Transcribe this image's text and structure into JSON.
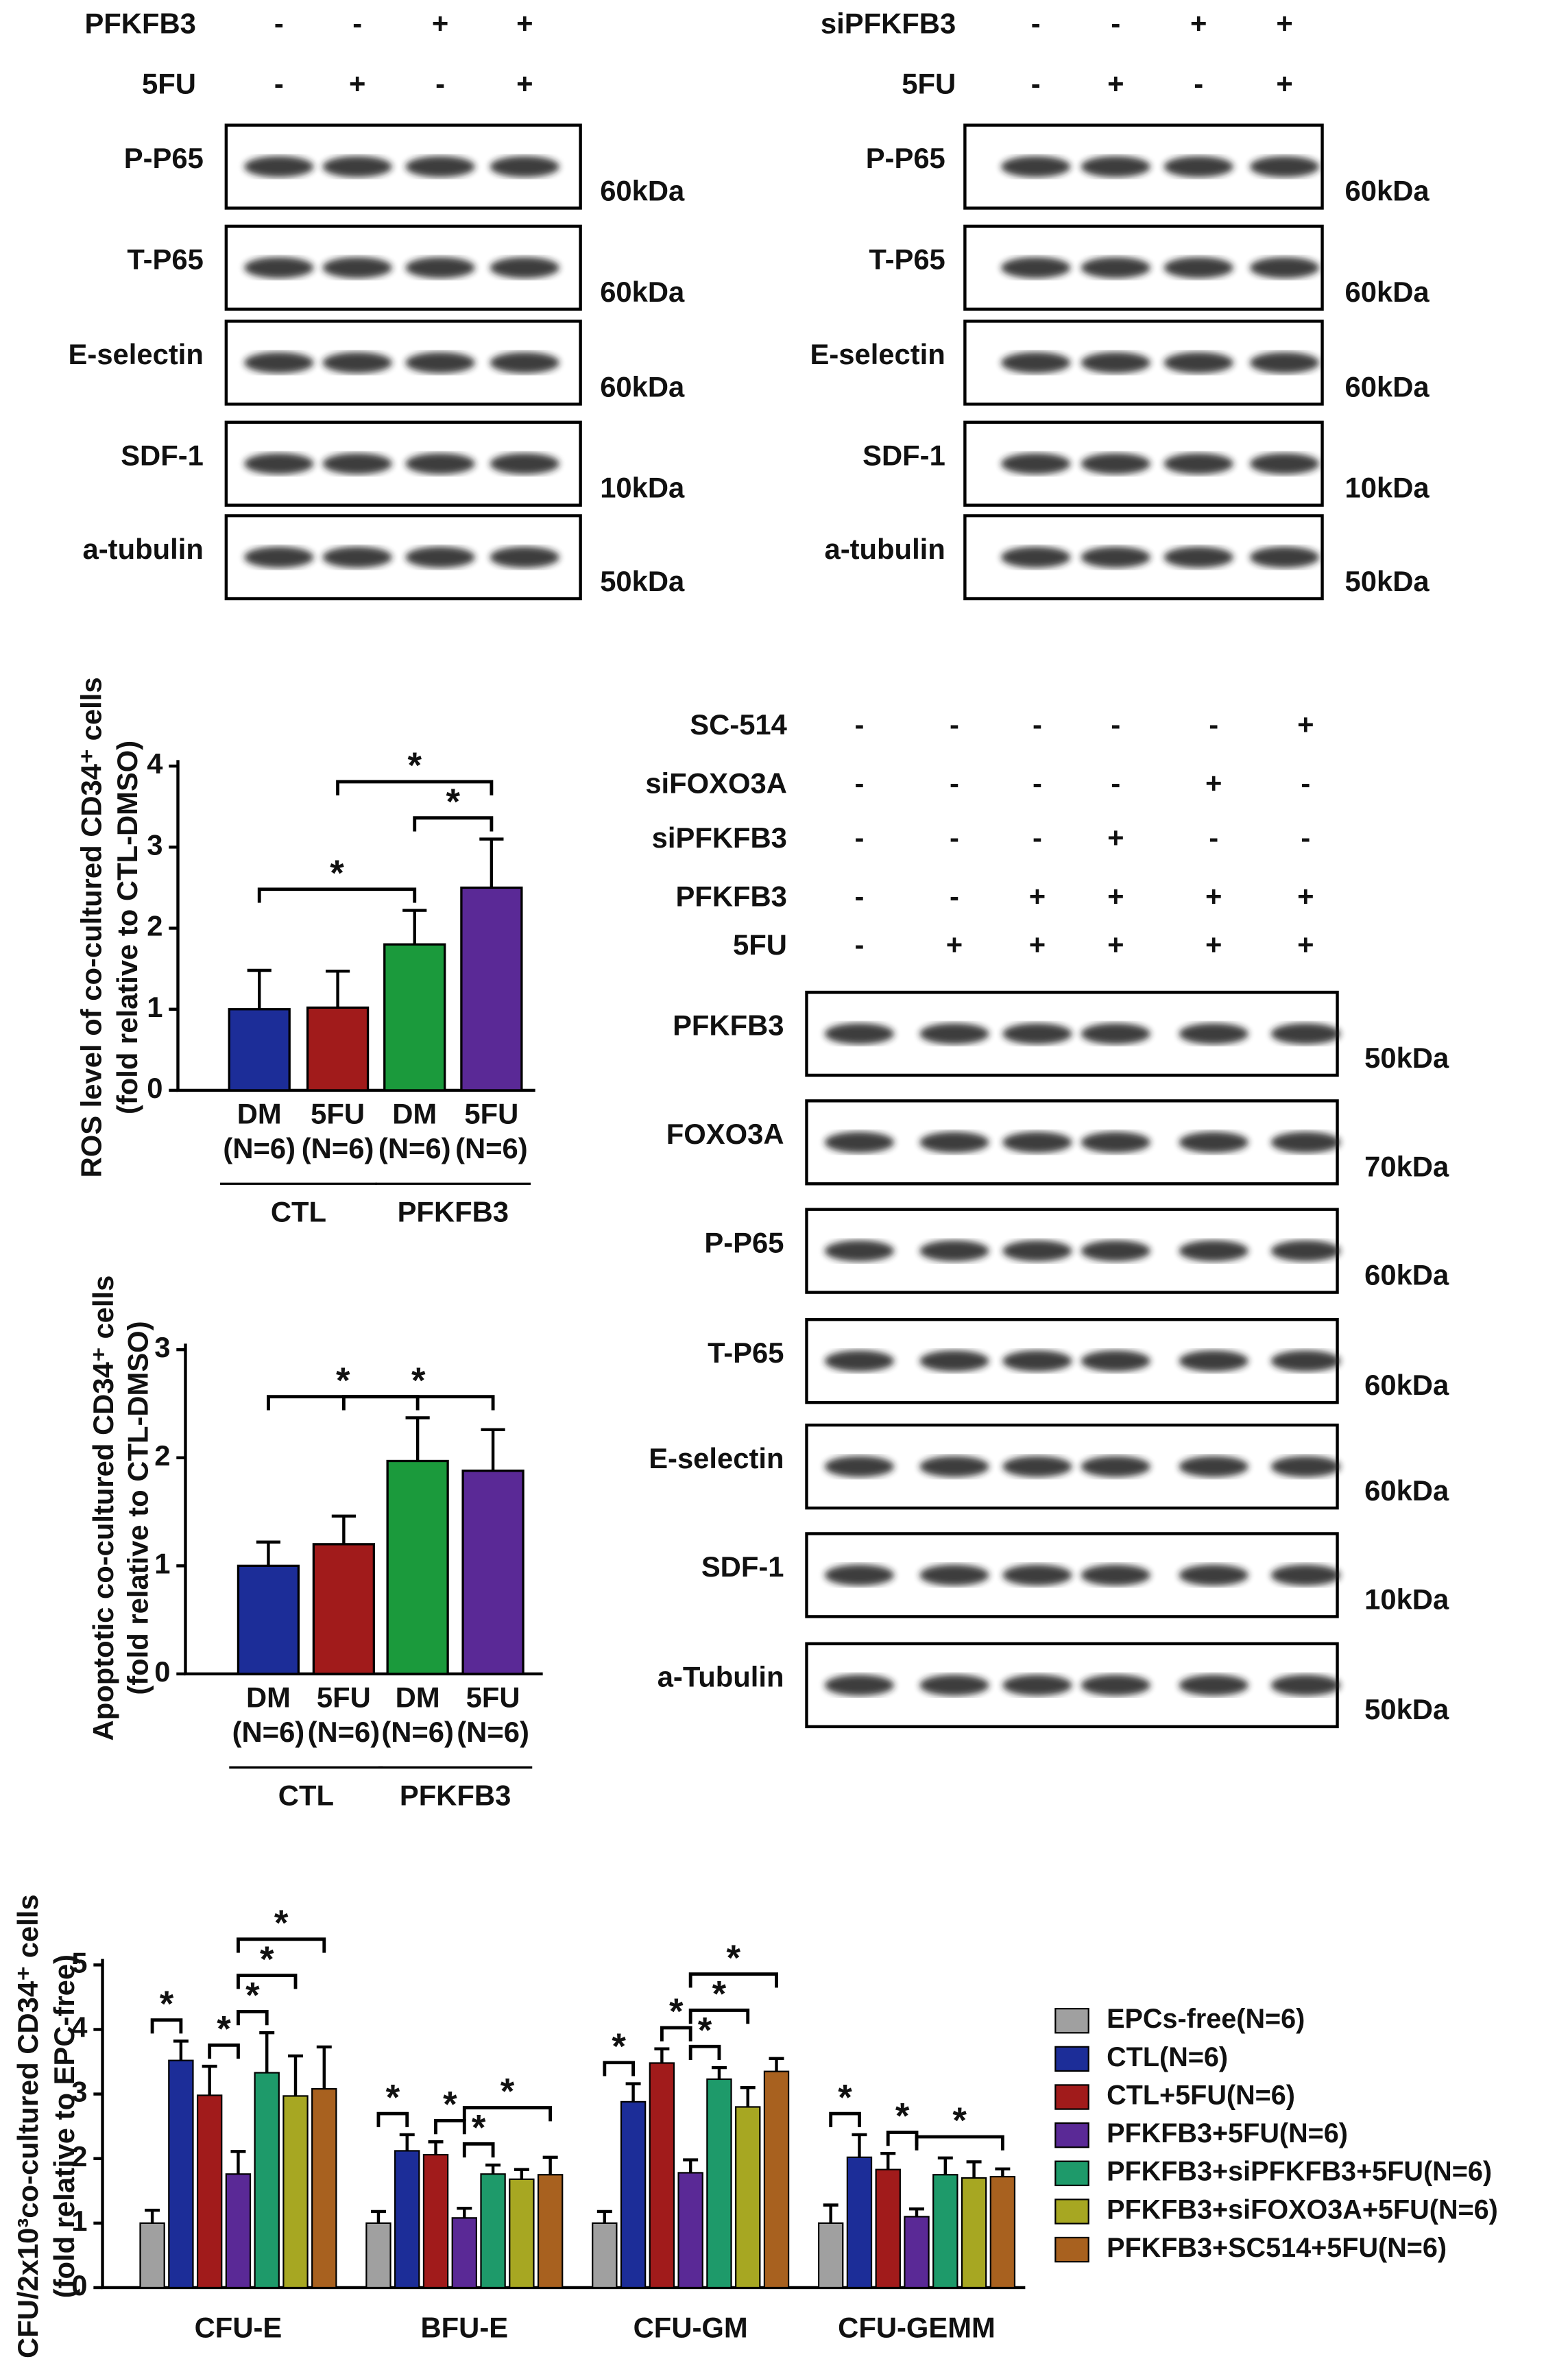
{
  "blots": [
    {
      "conditions": [
        {
          "label": "PFKFB3",
          "signs": [
            "-",
            "-",
            "+",
            "+"
          ]
        },
        {
          "label": "5FU",
          "signs": [
            "-",
            "+",
            "-",
            "+"
          ]
        }
      ],
      "rows": [
        {
          "label": "P-P65",
          "size": "60kDa"
        },
        {
          "label": "T-P65",
          "size": "60kDa"
        },
        {
          "label": "E-selectin",
          "size": "60kDa"
        },
        {
          "label": "SDF-1",
          "size": "10kDa"
        },
        {
          "label": "a-tubulin",
          "size": "50kDa"
        }
      ]
    },
    {
      "conditions": [
        {
          "label": "siPFKFB3",
          "signs": [
            "-",
            "-",
            "+",
            "+"
          ]
        },
        {
          "label": "5FU",
          "signs": [
            "-",
            "+",
            "-",
            "+"
          ]
        }
      ],
      "rows": [
        {
          "label": "P-P65",
          "size": "60kDa"
        },
        {
          "label": "T-P65",
          "size": "60kDa"
        },
        {
          "label": "E-selectin",
          "size": "60kDa"
        },
        {
          "label": "SDF-1",
          "size": "10kDa"
        },
        {
          "label": "a-tubulin",
          "size": "50kDa"
        }
      ]
    },
    {
      "conditions": [
        {
          "label": "SC-514",
          "signs": [
            "-",
            "-",
            "-",
            "-",
            "-",
            "+"
          ]
        },
        {
          "label": "siFOXO3A",
          "signs": [
            "-",
            "-",
            "-",
            "-",
            "+",
            "-"
          ]
        },
        {
          "label": "siPFKFB3",
          "signs": [
            "-",
            "-",
            "-",
            "+",
            "-",
            "-"
          ]
        },
        {
          "label": "PFKFB3",
          "signs": [
            "-",
            "-",
            "+",
            "+",
            "+",
            "+"
          ]
        },
        {
          "label": "5FU",
          "signs": [
            "-",
            "+",
            "+",
            "+",
            "+",
            "+"
          ]
        }
      ],
      "rows": [
        {
          "label": "PFKFB3",
          "size": "50kDa"
        },
        {
          "label": "FOXO3A",
          "size": "70kDa"
        },
        {
          "label": "P-P65",
          "size": "60kDa"
        },
        {
          "label": "T-P65",
          "size": "60kDa"
        },
        {
          "label": "E-selectin",
          "size": "60kDa"
        },
        {
          "label": "SDF-1",
          "size": "10kDa"
        },
        {
          "label": "a-Tubulin",
          "size": "50kDa"
        }
      ]
    }
  ],
  "chart_data": [
    {
      "type": "bar",
      "ylabel": [
        "ROS level of co-cultured CD34⁺ cells",
        "(fold relative to CTL-DMSO)"
      ],
      "categories": [
        "DM",
        "5FU",
        "DM",
        "5FU"
      ],
      "sample_sizes": [
        "(N=6)",
        "(N=6)",
        "(N=6)",
        "(N=6)"
      ],
      "groups": [
        {
          "label": "CTL",
          "members": [
            0,
            1
          ]
        },
        {
          "label": "PFKFB3",
          "members": [
            2,
            3
          ]
        }
      ],
      "values": [
        1.0,
        1.02,
        1.8,
        2.5
      ],
      "errors": [
        0.48,
        0.45,
        0.42,
        0.6
      ],
      "colors": [
        "#1c2d98",
        "#a11b1b",
        "#1b9a3c",
        "#5a2996"
      ],
      "ylim": [
        0,
        4
      ],
      "yticks": [
        0,
        1,
        2,
        3,
        4
      ],
      "significance": [
        {
          "pair": [
            2,
            3
          ],
          "label": "*"
        },
        {
          "pair": [
            0,
            2
          ],
          "label": "*"
        },
        {
          "pair": [
            1,
            3
          ],
          "label": "*"
        }
      ]
    },
    {
      "type": "bar",
      "ylabel": [
        "Apoptotic co-cultured CD34⁺ cells",
        "(fold relative to CTL-DMSO)"
      ],
      "categories": [
        "DM",
        "5FU",
        "DM",
        "5FU"
      ],
      "sample_sizes": [
        "(N=6)",
        "(N=6)",
        "(N=6)",
        "(N=6)"
      ],
      "groups": [
        {
          "label": "CTL",
          "members": [
            0,
            1
          ]
        },
        {
          "label": "PFKFB3",
          "members": [
            2,
            3
          ]
        }
      ],
      "values": [
        1.0,
        1.2,
        1.97,
        1.88
      ],
      "errors": [
        0.22,
        0.26,
        0.4,
        0.38
      ],
      "colors": [
        "#1c2d98",
        "#a11b1b",
        "#1b9a3c",
        "#5a2996"
      ],
      "ylim": [
        0,
        3
      ],
      "yticks": [
        0,
        1,
        2,
        3
      ],
      "significance": [
        {
          "pair": [
            0,
            2
          ],
          "label": "*"
        },
        {
          "pair": [
            1,
            3
          ],
          "label": "*"
        }
      ]
    },
    {
      "type": "grouped_bar",
      "ylabel": [
        "CFU/2x10³co-cultured CD34⁺ cells",
        "(fold relative to EPC-free)"
      ],
      "categories": [
        "CFU-E",
        "BFU-E",
        "CFU-GM",
        "CFU-GEMM"
      ],
      "series": [
        {
          "name": "EPCs-free(N=6)",
          "color": "#a0a0a0",
          "values": [
            1.0,
            1.0,
            1.0,
            1.0
          ],
          "errors": [
            0.2,
            0.18,
            0.18,
            0.28
          ]
        },
        {
          "name": "CTL(N=6)",
          "color": "#1c2d98",
          "values": [
            3.52,
            2.12,
            2.88,
            2.02
          ],
          "errors": [
            0.3,
            0.25,
            0.28,
            0.35
          ]
        },
        {
          "name": "CTL+5FU(N=6)",
          "color": "#a11b1b",
          "values": [
            2.98,
            2.06,
            3.48,
            1.83
          ],
          "errors": [
            0.45,
            0.2,
            0.22,
            0.25
          ]
        },
        {
          "name": "PFKFB3+5FU(N=6)",
          "color": "#5a2996",
          "values": [
            1.76,
            1.08,
            1.78,
            1.1
          ],
          "errors": [
            0.35,
            0.15,
            0.2,
            0.12
          ]
        },
        {
          "name": "PFKFB3+siPFKFB3+5FU(N=6)",
          "color": "#1e9a6a",
          "values": [
            3.33,
            1.76,
            3.23,
            1.75
          ],
          "errors": [
            0.62,
            0.14,
            0.18,
            0.26
          ]
        },
        {
          "name": "PFKFB3+siFOXO3A+5FU(N=6)",
          "color": "#a7a722",
          "values": [
            2.97,
            1.68,
            2.8,
            1.7
          ],
          "errors": [
            0.62,
            0.15,
            0.3,
            0.25
          ]
        },
        {
          "name": "PFKFB3+SC514+5FU(N=6)",
          "color": "#a8611f",
          "values": [
            3.08,
            1.75,
            3.35,
            1.72
          ],
          "errors": [
            0.65,
            0.27,
            0.2,
            0.12
          ]
        }
      ],
      "ylim": [
        0,
        5
      ],
      "yticks": [
        0,
        1,
        2,
        3,
        4,
        5
      ],
      "significance": [
        {
          "category": 0,
          "pair": [
            0,
            1
          ],
          "label": "*"
        },
        {
          "category": 0,
          "pair": [
            2,
            3
          ],
          "label": "*"
        },
        {
          "category": 0,
          "pair": [
            3,
            4
          ],
          "label": "*"
        },
        {
          "category": 0,
          "pair": [
            3,
            5
          ],
          "label": "*"
        },
        {
          "category": 0,
          "pair": [
            3,
            6
          ],
          "label": "*"
        },
        {
          "category": 1,
          "pair": [
            0,
            1
          ],
          "label": "*"
        },
        {
          "category": 1,
          "pair": [
            2,
            3
          ],
          "label": "*"
        },
        {
          "category": 1,
          "pair": [
            3,
            4
          ],
          "label": "*"
        },
        {
          "category": 1,
          "pair": [
            3,
            6
          ],
          "label": "*"
        },
        {
          "category": 2,
          "pair": [
            0,
            1
          ],
          "label": "*"
        },
        {
          "category": 2,
          "pair": [
            2,
            3
          ],
          "label": "*"
        },
        {
          "category": 2,
          "pair": [
            3,
            4
          ],
          "label": "*"
        },
        {
          "category": 2,
          "pair": [
            3,
            5
          ],
          "label": "*"
        },
        {
          "category": 2,
          "pair": [
            3,
            6
          ],
          "label": "*"
        },
        {
          "category": 3,
          "pair": [
            0,
            1
          ],
          "label": "*"
        },
        {
          "category": 3,
          "pair": [
            2,
            3
          ],
          "label": "*"
        },
        {
          "category": 3,
          "pair": [
            3,
            6
          ],
          "label": "*"
        }
      ]
    }
  ]
}
